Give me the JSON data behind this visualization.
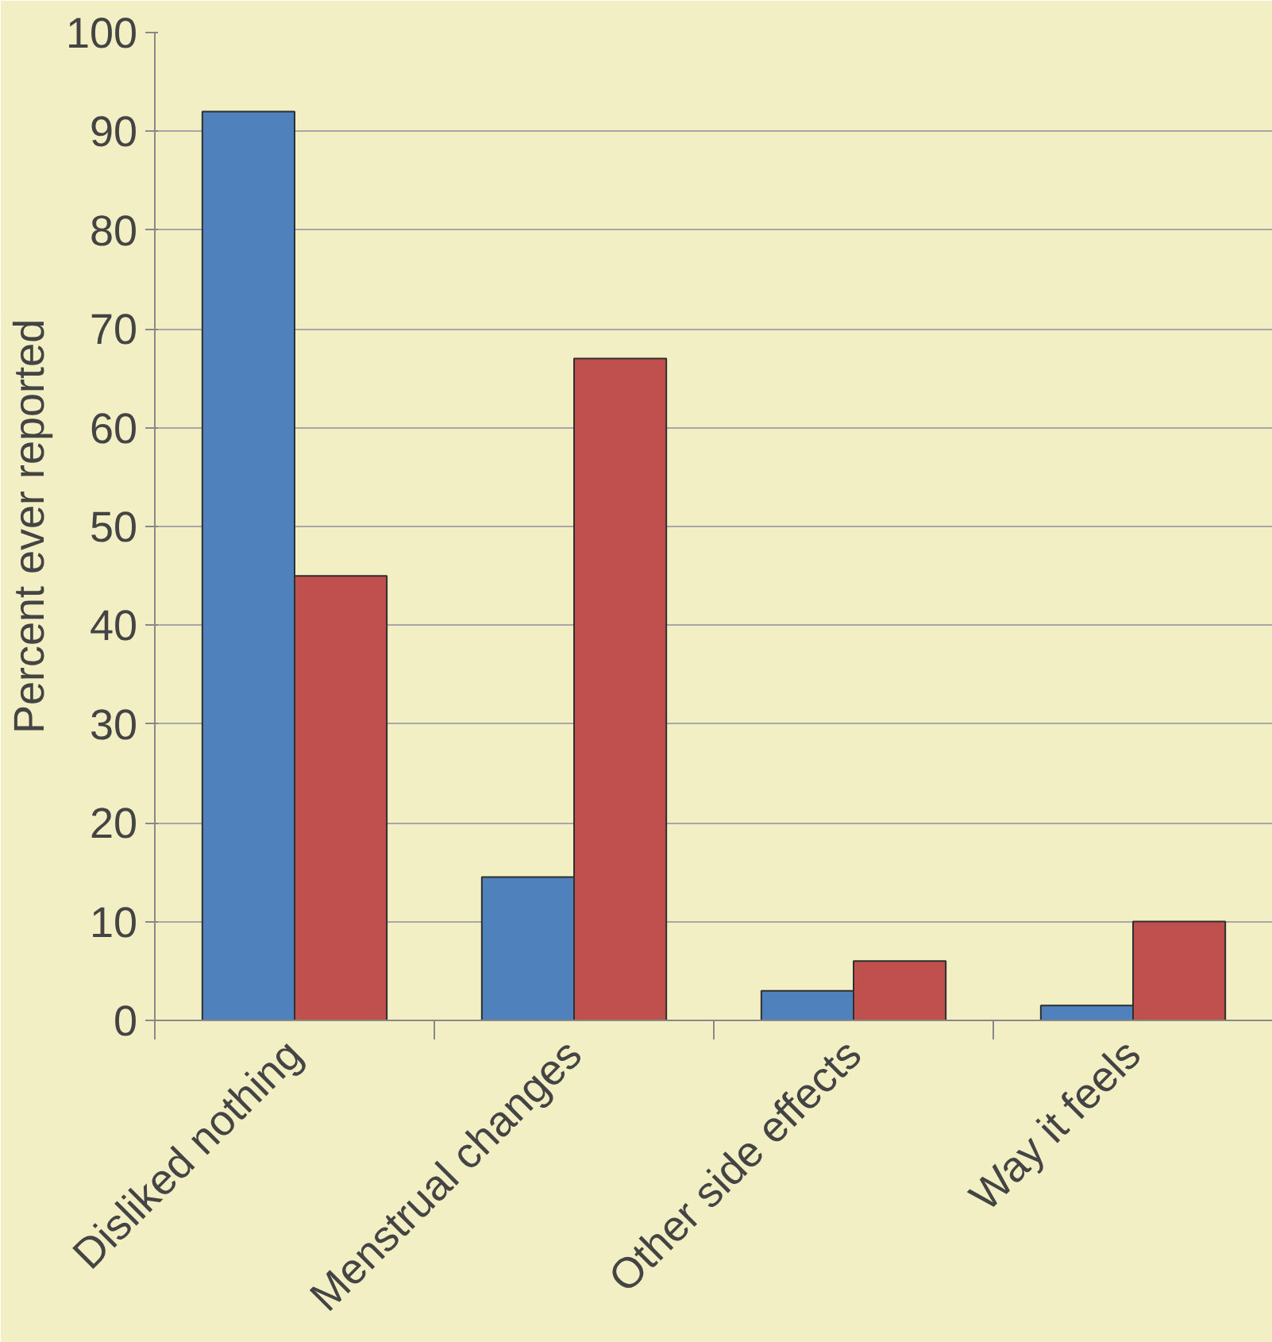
{
  "chart_data": {
    "type": "bar",
    "ylabel": "Percent ever reported",
    "categories": [
      "Disliked nothing",
      "Menstrual changes",
      "Other side effects",
      "Way it feels"
    ],
    "series": [
      {
        "color": "#4f81bd",
        "values": [
          92,
          14.5,
          3,
          1.5
        ]
      },
      {
        "color": "#c0504d",
        "values": [
          45,
          67,
          6,
          10
        ]
      }
    ],
    "ylim": [
      0,
      100
    ],
    "yticks": [
      0,
      10,
      20,
      30,
      40,
      50,
      60,
      70,
      80,
      90,
      100
    ],
    "grid": "y"
  }
}
